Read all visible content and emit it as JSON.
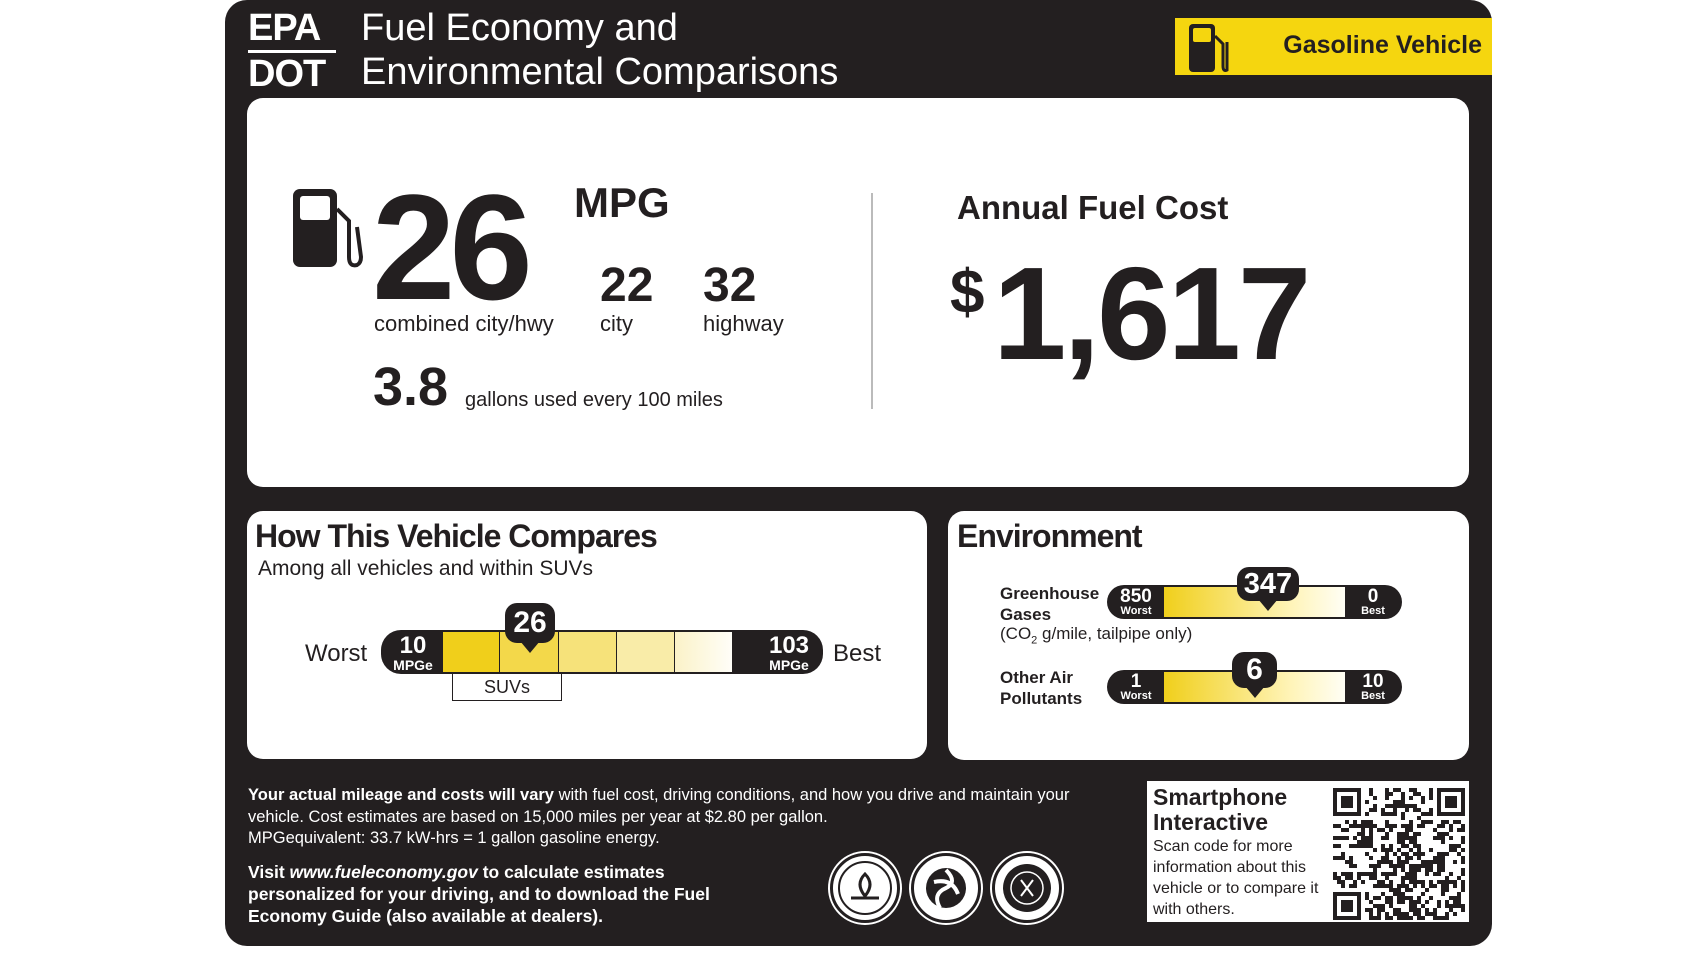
{
  "header": {
    "agency_top": "EPA",
    "agency_bottom": "DOT",
    "title_line1": "Fuel Economy and",
    "title_line2": "Environmental Comparisons",
    "badge": "Gasoline Vehicle",
    "badge_color": "#f5d60f"
  },
  "fuel_economy": {
    "combined_mpg": "26",
    "unit": "MPG",
    "city_mpg": "22",
    "highway_mpg": "32",
    "combined_label": "combined city/hwy",
    "city_label": "city",
    "highway_label": "highway",
    "gallons": "3.8",
    "gallons_label": "gallons used every 100 miles",
    "icon": "fuel-pump-icon"
  },
  "annual_cost": {
    "label": "Annual Fuel Cost",
    "currency": "$",
    "value": "1,617"
  },
  "compare": {
    "title": "How This Vehicle Compares",
    "subtitle": "Among all vehicles and within SUVs",
    "worst_label": "Worst",
    "best_label": "Best",
    "min": "10",
    "max": "103",
    "unit": "MPGe",
    "value": "26",
    "class_label": "SUVs"
  },
  "environment": {
    "title": "Environment",
    "ghg": {
      "label_line1": "Greenhouse",
      "label_line2": "Gases",
      "note_pre": "(CO",
      "note_sub": "2",
      "note_post": " g/mile, tailpipe only)",
      "worst": "850",
      "best": "0",
      "value": "347",
      "worst_label": "Worst",
      "best_label": "Best"
    },
    "air": {
      "label_line1": "Other Air",
      "label_line2": "Pollutants",
      "worst": "1",
      "best": "10",
      "value": "6",
      "worst_label": "Worst",
      "best_label": "Best"
    }
  },
  "footer": {
    "p1_bold": "Your actual mileage and costs will vary",
    "p1_rest": " with fuel cost, driving conditions, and how you drive and maintain your vehicle. Cost estimates are based on 15,000 miles per year at $2.80 per gallon.",
    "p1_line3": "MPGequivalent: 33.7 kW-hrs = 1 gallon gasoline energy.",
    "p2_pre": "Visit ",
    "p2_link": "www.fueleconomy.gov",
    "p2_post": " to calculate estimates personalized for your driving, and to download the Fuel Economy Guide (also available at dealers).",
    "seals": [
      "epa-seal",
      "dot-seal",
      "doe-seal"
    ]
  },
  "smartphone": {
    "title_line1": "Smartphone",
    "title_line2": "Interactive",
    "body": "Scan code for more information about this vehicle or to compare it with others."
  }
}
